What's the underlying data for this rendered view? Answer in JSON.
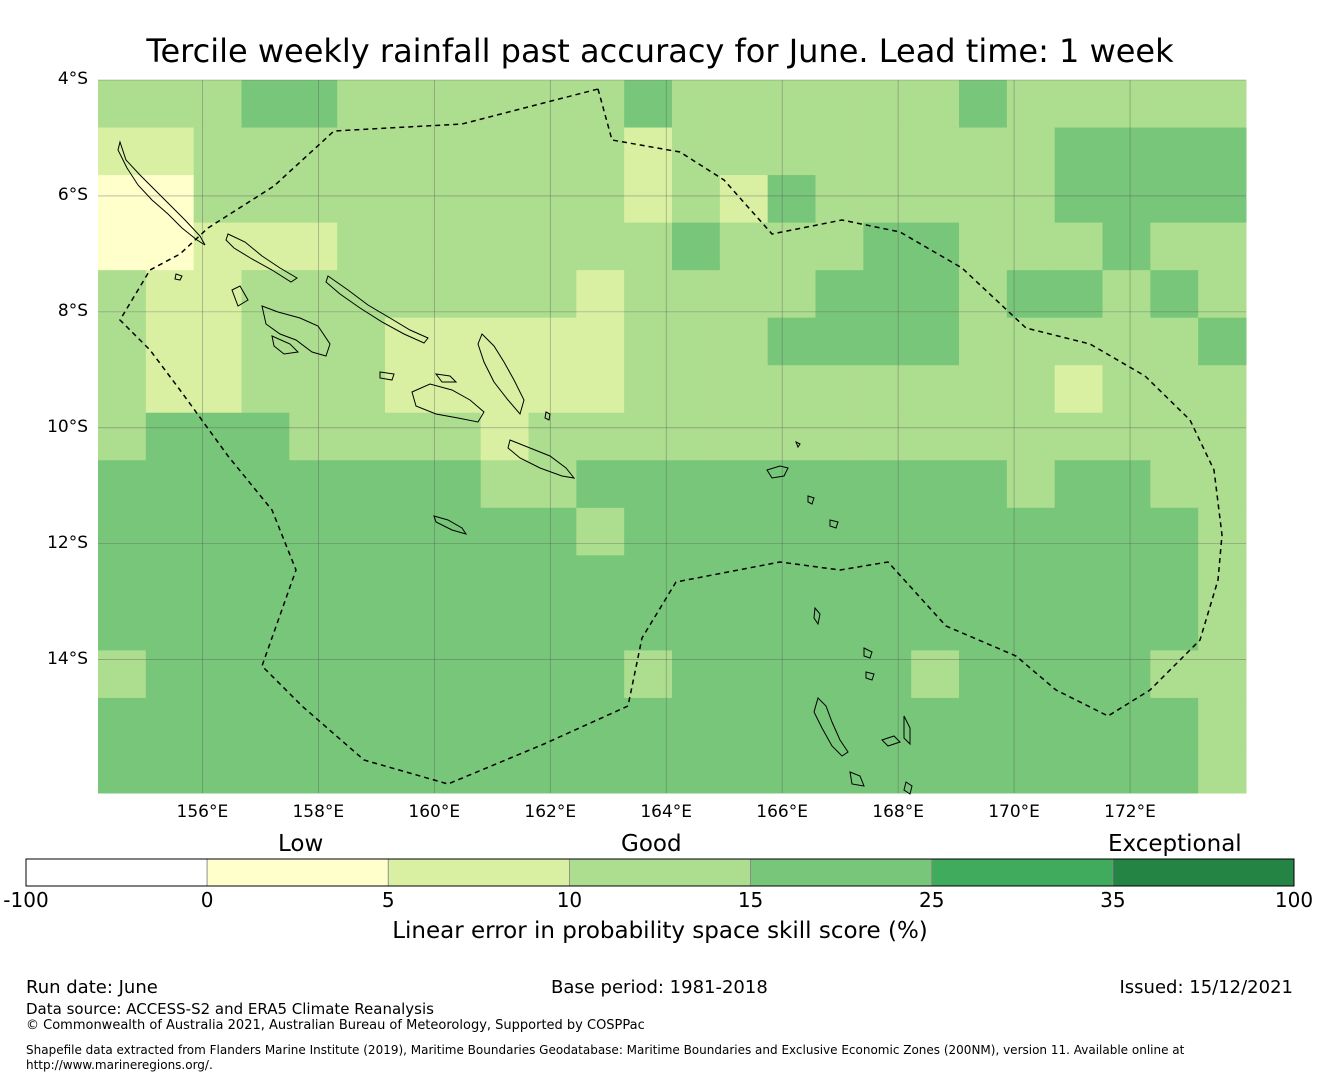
{
  "title": "Tercile weekly rainfall past accuracy for June. Lead time: 1 week",
  "map": {
    "lat_ticks": [
      "4°S",
      "6°S",
      "8°S",
      "10°S",
      "12°S",
      "14°S"
    ],
    "lon_ticks": [
      "156°E",
      "158°E",
      "160°E",
      "162°E",
      "164°E",
      "166°E",
      "168°E",
      "170°E",
      "172°E"
    ],
    "lon_range": [
      154.2,
      174.0
    ],
    "lat_range": [
      -16.3,
      -4.0
    ]
  },
  "legend": {
    "categories": [
      "Low",
      "Good",
      "Exceptional"
    ],
    "ticks": [
      "-100",
      "0",
      "5",
      "10",
      "15",
      "25",
      "35",
      "100"
    ],
    "colors": [
      "#ffffff",
      "#ffffcc",
      "#d9f0a3",
      "#addd8e",
      "#78c679",
      "#41ab5d",
      "#238443"
    ],
    "title": "Linear error in probability space skill score (%)"
  },
  "footer": {
    "run_date": "Run date: June",
    "base_period": "Base period: 1981-2018",
    "issued": "Issued: 15/12/2021",
    "data_source": "Data source: ACCESS-S2 and ERA5 Climate Reanalysis",
    "copyright": "© Commonwealth of Australia 2021, Australian Bureau of Meteorology, Supported by COSPPac",
    "shapefile_line1": "Shapefile data extracted from Flanders Marine Institute (2019), Maritime Boundaries Geodatabase: Maritime Boundaries and Exclusive Economic Zones (200NM), version 11. Available online at",
    "shapefile_line2": "http://www.marineregions.org/."
  }
}
